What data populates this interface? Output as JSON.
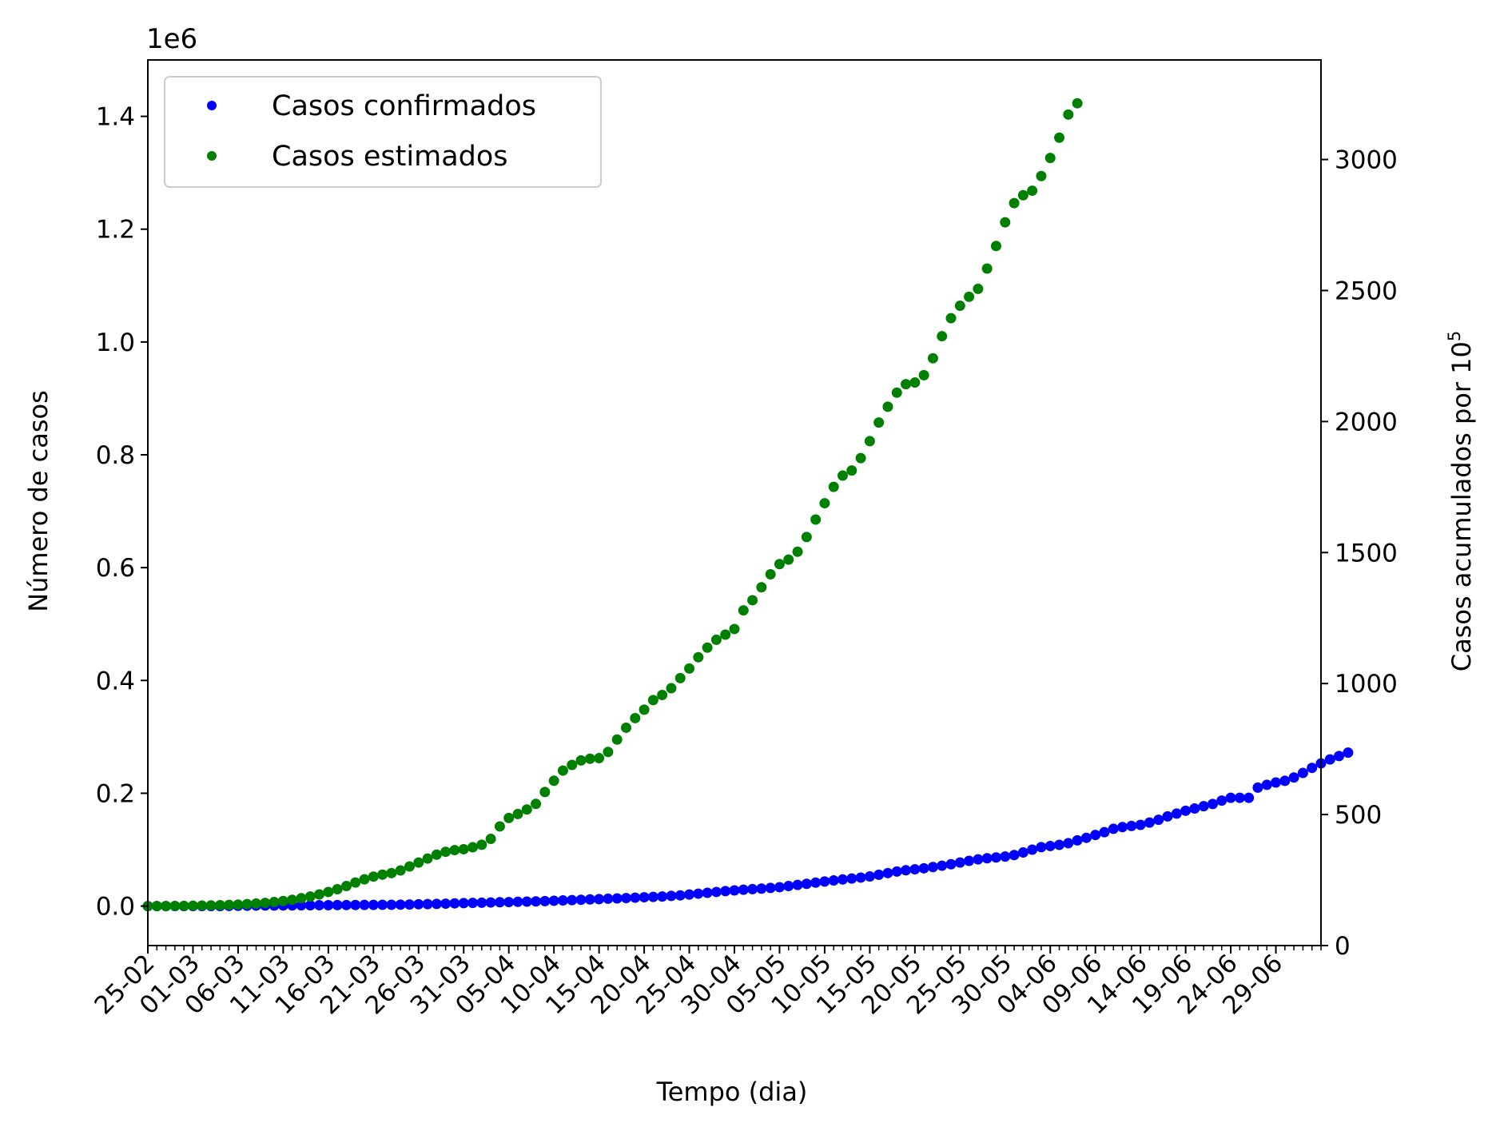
{
  "chart_data": {
    "type": "scatter",
    "xlabel": "Tempo (dia)",
    "ylabel": "Número de casos",
    "y_offset_label": "1e6",
    "ylabel_right": "Casos acumulados por 10",
    "ylabel_right_exponent": "5",
    "x_tick_labels": [
      "25-02",
      "01-03",
      "06-03",
      "11-03",
      "16-03",
      "21-03",
      "26-03",
      "31-03",
      "05-04",
      "10-04",
      "15-04",
      "20-04",
      "25-04",
      "30-04",
      "05-05",
      "10-05",
      "15-05",
      "20-05",
      "25-05",
      "30-05",
      "04-06",
      "09-06",
      "14-06",
      "19-06",
      "24-06",
      "29-06"
    ],
    "x_tick_labels_rotation_deg": 45,
    "x_tick_spacing_days": 5,
    "x_domain_days": [
      0,
      130
    ],
    "y_ticks": [
      "0.0",
      "0.2",
      "0.4",
      "0.6",
      "0.8",
      "1.0",
      "1.2",
      "1.4"
    ],
    "y_tick_values": [
      0,
      0.2,
      0.4,
      0.6,
      0.8,
      1.0,
      1.2,
      1.4
    ],
    "ylim": [
      -0.07,
      1.5
    ],
    "y2_ticks": [
      "0",
      "500",
      "1000",
      "1500",
      "2000",
      "2500",
      "3000"
    ],
    "y2_tick_values": [
      0,
      500,
      1000,
      1500,
      2000,
      2500,
      3000
    ],
    "y2lim": [
      0,
      3380
    ],
    "grid": false,
    "legend_position": "top-left",
    "series": [
      {
        "name": "Casos confirmados",
        "color": "#0000ff",
        "start_date": "25-02",
        "values": [
          0,
          0,
          0,
          0,
          0,
          0,
          0,
          0,
          0,
          0.0002,
          0.0005,
          0.0007,
          0.0009,
          0.001,
          0.001,
          0.0011,
          0.0012,
          0.0013,
          0.0014,
          0.0015,
          0.0016,
          0.0017,
          0.0018,
          0.0019,
          0.002,
          0.0021,
          0.0022,
          0.0023,
          0.0025,
          0.0028,
          0.0032,
          0.0035,
          0.0039,
          0.0043,
          0.0048,
          0.0052,
          0.0056,
          0.006,
          0.0064,
          0.0068,
          0.0071,
          0.0075,
          0.0079,
          0.0083,
          0.0088,
          0.0094,
          0.01,
          0.0106,
          0.0112,
          0.0118,
          0.0124,
          0.013,
          0.0136,
          0.0142,
          0.0149,
          0.0156,
          0.0163,
          0.017,
          0.018,
          0.019,
          0.0205,
          0.022,
          0.0235,
          0.025,
          0.0265,
          0.0278,
          0.029,
          0.03,
          0.031,
          0.0322,
          0.0335,
          0.0355,
          0.0375,
          0.0395,
          0.0415,
          0.0435,
          0.0455,
          0.0472,
          0.0488,
          0.0505,
          0.0525,
          0.0555,
          0.0585,
          0.0612,
          0.0635,
          0.0652,
          0.067,
          0.0692,
          0.0716,
          0.0742,
          0.0772,
          0.0802,
          0.0828,
          0.0848,
          0.0862,
          0.0878,
          0.0905,
          0.095,
          0.1,
          0.1045,
          0.1065,
          0.1085,
          0.1115,
          0.1165,
          0.121,
          0.126,
          0.131,
          0.137,
          0.14,
          0.142,
          0.144,
          0.148,
          0.153,
          0.159,
          0.164,
          0.169,
          0.173,
          0.177,
          0.181,
          0.187,
          0.192,
          0.192,
          0.192,
          0.21,
          0.215,
          0.219,
          0.222,
          0.228,
          0.236,
          0.245,
          0.253,
          0.26,
          0.266,
          0.272
        ]
      },
      {
        "name": "Casos estimados",
        "color": "#008000",
        "start_date": "25-02",
        "values": [
          0,
          0,
          0,
          0.0002,
          0.0004,
          0.0006,
          0.0009,
          0.0012,
          0.0016,
          0.0021,
          0.0027,
          0.0035,
          0.0045,
          0.0057,
          0.0072,
          0.009,
          0.0112,
          0.0139,
          0.017,
          0.0207,
          0.025,
          0.0299,
          0.0355,
          0.0418,
          0.0474,
          0.0523,
          0.0558,
          0.0585,
          0.0632,
          0.0702,
          0.0772,
          0.0842,
          0.0912,
          0.0962,
          0.0992,
          0.1008,
          0.1042,
          0.1087,
          0.1192,
          0.1412,
          0.1562,
          0.1632,
          0.1712,
          0.1812,
          0.2022,
          0.2222,
          0.2402,
          0.2502,
          0.2582,
          0.2612,
          0.2622,
          0.2732,
          0.2952,
          0.3162,
          0.3332,
          0.3482,
          0.3652,
          0.3742,
          0.3862,
          0.4042,
          0.4212,
          0.4412,
          0.4582,
          0.4722,
          0.4812,
          0.4912,
          0.5242,
          0.5422,
          0.5652,
          0.5882,
          0.6062,
          0.6142,
          0.6282,
          0.6542,
          0.6852,
          0.7142,
          0.7432,
          0.7632,
          0.7722,
          0.7942,
          0.8242,
          0.8572,
          0.8852,
          0.9102,
          0.9252,
          0.9282,
          0.9412,
          0.9712,
          1.0102,
          1.0422,
          1.0642,
          1.0802,
          1.0942,
          1.1302,
          1.1702,
          1.2122,
          1.2462,
          1.2602,
          1.2682,
          1.2942,
          1.3262,
          1.3622,
          1.4032,
          1.4232
        ]
      }
    ]
  }
}
